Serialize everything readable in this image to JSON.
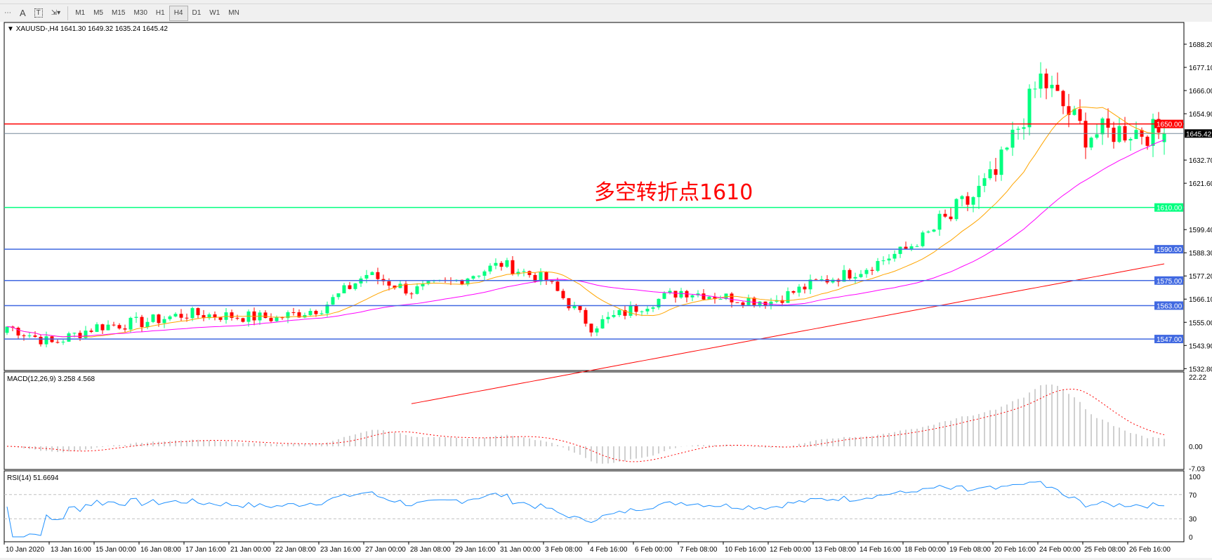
{
  "toolbar": {
    "buttons": [
      {
        "name": "crosshair-grid",
        "label": "⋯"
      },
      {
        "name": "text",
        "label": "A"
      },
      {
        "name": "text-label",
        "label": "T"
      },
      {
        "name": "arrows",
        "label": "⇲▾"
      }
    ],
    "timeframes": [
      "M1",
      "M5",
      "M15",
      "M30",
      "H1",
      "H4",
      "D1",
      "W1",
      "MN"
    ],
    "active_timeframe": "H4"
  },
  "main": {
    "header": "XAUUSD-,H4  1641.30 1649.32 1635.24 1645.42",
    "annotation": "多空转折点1610",
    "price_ticks": [
      "1688.20",
      "1677.10",
      "1666.00",
      "1654.90",
      "1632.70",
      "1621.60",
      "1599.40",
      "1588.30",
      "1577.20",
      "1566.10",
      "1555.00",
      "1543.90",
      "1532.80"
    ],
    "current_price": "1645.42",
    "levels": [
      {
        "price": 1650.0,
        "label": "1650.00",
        "color": "#ff0000"
      },
      {
        "price": 1610.0,
        "label": "1610.00",
        "color": "#00ff7f"
      },
      {
        "price": 1590.0,
        "label": "1590.00",
        "color": "#4169e1"
      },
      {
        "price": 1575.0,
        "label": "1575.00",
        "color": "#4169e1"
      },
      {
        "price": 1563.0,
        "label": "1563.00",
        "color": "#4169e1"
      },
      {
        "price": 1547.0,
        "label": "1547.00",
        "color": "#4169e1"
      }
    ],
    "colors": {
      "bull": "#00ff7f",
      "bear": "#ff0000",
      "ma_fast": "#ffa500",
      "ma_mid": "#ff00ff",
      "ma_slow": "#ff0000",
      "current_line": "#778899"
    }
  },
  "chart_data": {
    "type": "candlestick",
    "timeframe": "H4",
    "symbol": "XAUUSD-",
    "x_labels": [
      "10 Jan 2020",
      "13 Jan 16:00",
      "15 Jan 00:00",
      "16 Jan 08:00",
      "17 Jan 16:00",
      "21 Jan 00:00",
      "22 Jan 08:00",
      "23 Jan 16:00",
      "27 Jan 00:00",
      "28 Jan 08:00",
      "29 Jan 16:00",
      "31 Jan 00:00",
      "3 Feb 08:00",
      "4 Feb 16:00",
      "6 Feb 00:00",
      "7 Feb 08:00",
      "10 Feb 16:00",
      "12 Feb 00:00",
      "13 Feb 08:00",
      "14 Feb 16:00",
      "18 Feb 00:00",
      "19 Feb 08:00",
      "20 Feb 16:00",
      "24 Feb 00:00",
      "25 Feb 08:00",
      "26 Feb 16:00"
    ],
    "approx_close_at_labels": [
      1553,
      1545,
      1553,
      1555,
      1559,
      1558,
      1557,
      1562,
      1578,
      1570,
      1575,
      1583,
      1575,
      1553,
      1562,
      1570,
      1567,
      1565,
      1574,
      1580,
      1590,
      1605,
      1625,
      1672,
      1645,
      1647
    ],
    "last": {
      "open": 1641.3,
      "high": 1649.32,
      "low": 1635.24,
      "close": 1645.42
    },
    "slow_ma_visible": [
      {
        "at": "4 Feb 16:00",
        "value": 1532
      },
      {
        "at": "26 Feb 16:00",
        "value": 1580
      }
    ],
    "ylim": [
      1532.8,
      1693
    ]
  },
  "macd": {
    "label": "MACD(12,26,9) 3.258 4.568",
    "ticks": [
      "22.22",
      "0.00",
      "-7.03"
    ],
    "ylim": [
      -7.03,
      22.22
    ]
  },
  "rsi": {
    "label": "RSI(14) 51.6694",
    "ticks": [
      "100",
      "70",
      "30",
      "0"
    ],
    "levels": [
      70,
      30
    ]
  }
}
